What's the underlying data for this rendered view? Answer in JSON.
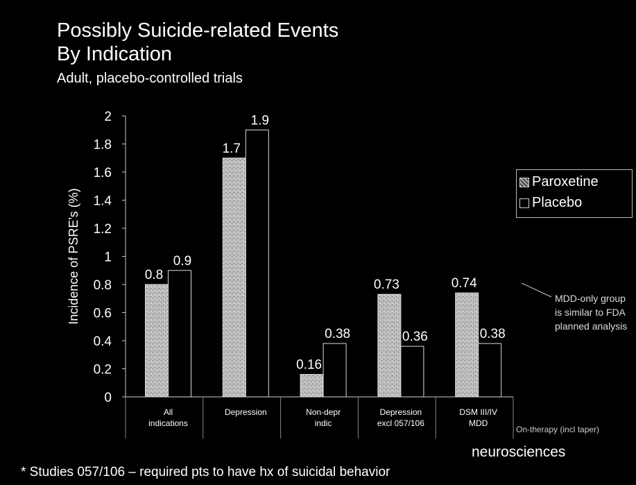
{
  "slide": {
    "title_line1": "Possibly Suicide-related Events",
    "title_line2": "By Indication",
    "subtitle": "Adult, placebo-controlled trials",
    "mdd_note": "MDD-only group is similar to FDA planned analysis",
    "on_therapy_note": "On-therapy (incl taper)",
    "logo_text": "neurosciences",
    "footnote": "* Studies 057/106 – required pts to have hx of suicidal behavior"
  },
  "chart_data": {
    "type": "bar",
    "title": "",
    "xlabel": "",
    "ylabel": "Incidence of PSRE's (%)",
    "ylim": [
      0,
      2
    ],
    "yticks": [
      "0",
      "0.2",
      "0.4",
      "0.6",
      "0.8",
      "1",
      "1.2",
      "1.4",
      "1.6",
      "1.8",
      "2"
    ],
    "categories": [
      [
        "All",
        "indications"
      ],
      [
        "Depression"
      ],
      [
        "Non-depr",
        "indic"
      ],
      [
        "Depression",
        "excl 057/106"
      ],
      [
        "DSM III/IV",
        "MDD"
      ]
    ],
    "series": [
      {
        "name": "Paroxetine",
        "values": [
          0.8,
          1.7,
          0.16,
          0.73,
          0.74
        ],
        "labels": [
          "0.8",
          "1.7",
          "0.16",
          "0.73",
          "0.74"
        ],
        "color": "#bdbdbd"
      },
      {
        "name": "Placebo",
        "values": [
          0.9,
          1.9,
          0.38,
          0.36,
          0.38
        ],
        "labels": [
          "0.9",
          "1.9",
          "0.38",
          "0.36",
          "0.38"
        ],
        "color": "#000000"
      }
    ],
    "legend_position": "right",
    "grid": false
  }
}
